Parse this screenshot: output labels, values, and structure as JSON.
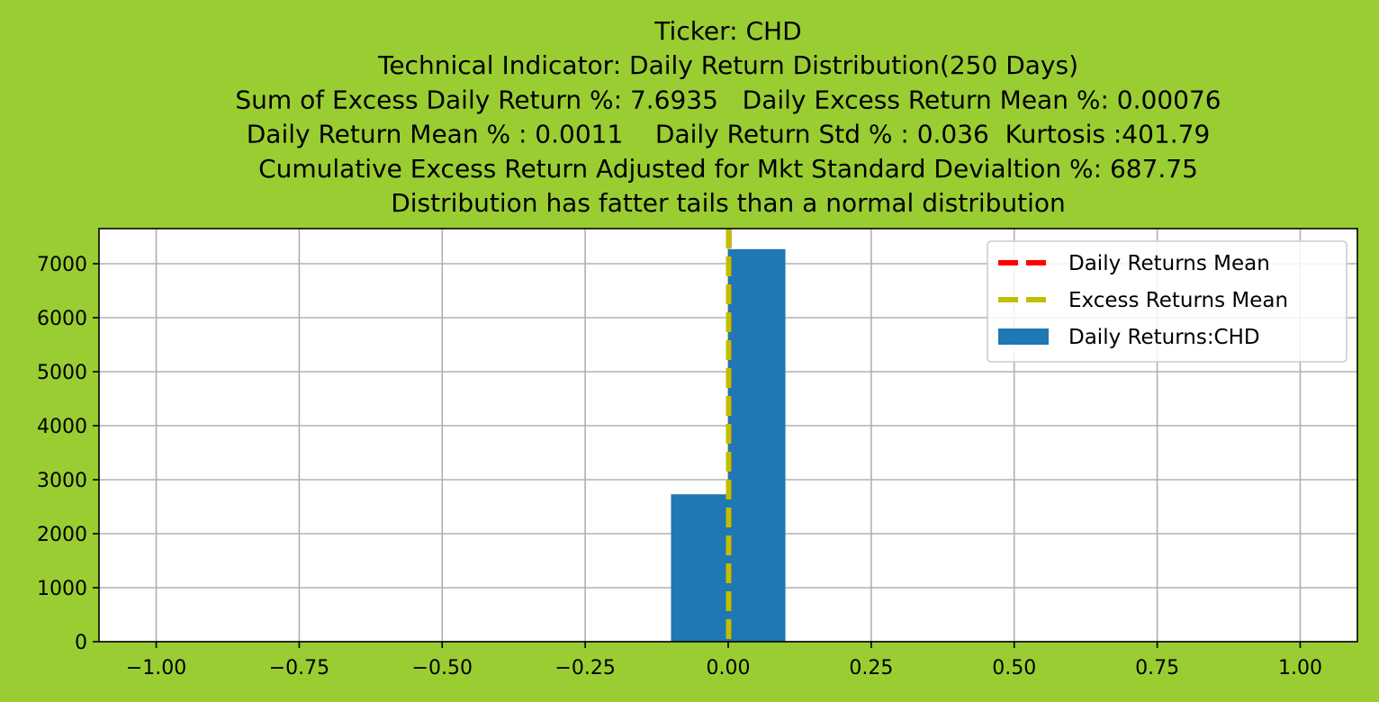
{
  "chart_data": {
    "type": "bar",
    "title_lines": [
      "Ticker: CHD",
      "Technical Indicator: Daily Return Distribution(250 Days)",
      "Sum of Excess Daily Return %: 7.6935   Daily Excess Return Mean %: 0.00076",
      "Daily Return Mean % : 0.0011    Daily Return Std % : 0.036  Kurtosis :401.79",
      "Cumulative Excess Return Adjusted for Mkt Standard Devialtion %: 687.75",
      "Distribution has fatter tails than a normal distribution"
    ],
    "xlim": [
      -1.1,
      1.1
    ],
    "ylim": [
      0,
      7650
    ],
    "x_ticks": [
      -1.0,
      -0.75,
      -0.5,
      -0.25,
      0.0,
      0.25,
      0.5,
      0.75,
      1.0
    ],
    "x_tick_labels": [
      "−1.00",
      "−0.75",
      "−0.50",
      "−0.25",
      "0.00",
      "0.25",
      "0.50",
      "0.75",
      "1.00"
    ],
    "y_ticks": [
      0,
      1000,
      2000,
      3000,
      4000,
      5000,
      6000,
      7000
    ],
    "y_tick_labels": [
      "0",
      "1000",
      "2000",
      "3000",
      "4000",
      "5000",
      "6000",
      "7000"
    ],
    "grid": true,
    "legend_position": "top-right",
    "histogram": {
      "name": "Daily Returns:CHD",
      "color": "#1f77b4",
      "bins": [
        {
          "x0": -0.1,
          "x1": 0.0,
          "count": 2730
        },
        {
          "x0": 0.0,
          "x1": 0.1,
          "count": 7270
        }
      ]
    },
    "mean_lines": [
      {
        "name": "Daily Returns Mean",
        "x": 0.0011,
        "color": "#ff0000"
      },
      {
        "name": "Excess Returns Mean",
        "x": 0.00076,
        "color": "#bfbf00"
      }
    ],
    "legend_entries": [
      {
        "label": "Daily Returns Mean",
        "kind": "dashed-line",
        "color": "#ff0000"
      },
      {
        "label": "Excess Returns Mean",
        "kind": "dashed-line",
        "color": "#bfbf00"
      },
      {
        "label": "Daily Returns:CHD",
        "kind": "patch",
        "color": "#1f77b4"
      }
    ],
    "colors": {
      "figure_background": "#9acd32",
      "axes_background": "#ffffff",
      "grid": "#b0b0b0"
    }
  }
}
